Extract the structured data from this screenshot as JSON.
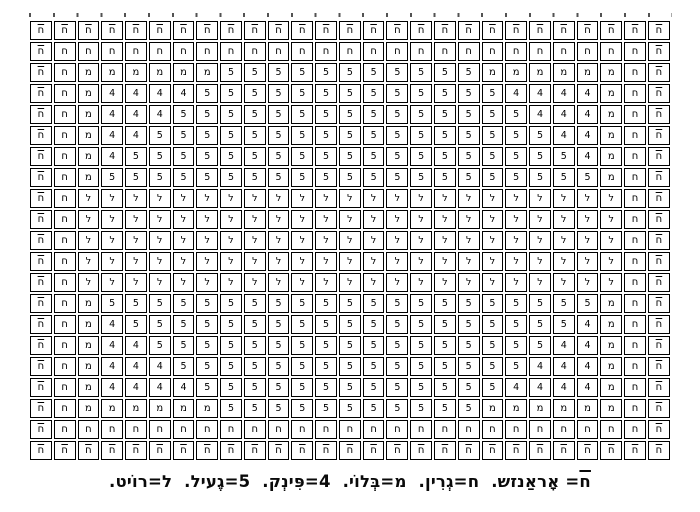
{
  "page": {
    "background_color": "#ffffff",
    "ink_color": "#000000",
    "kind": "needlework-pattern-chart-scan"
  },
  "grid": {
    "columns": 27,
    "rows_count": 21,
    "symbols": {
      "X": "het-rafe",
      "h": "het",
      "m": "mem",
      "4": "digit-4",
      "5": "digit-5",
      "L": "lamed"
    },
    "glyphs": {
      "X": "ח",
      "h": "ח",
      "m": "מ",
      "4": "4",
      "5": "5",
      "L": "ל"
    },
    "rows": [
      "XXXXXXXXXXXXXXXXXXXXXXXXXXX",
      "XhhhhhhhhhhhhhhhhhhhhhhhhhX",
      "Xhmmmmmm55555555555mmmmmmhX",
      "Xhm444455555555555554444mhX",
      "Xhm444555555555555555444mhX",
      "Xhm445555555555555555544mhX",
      "Xhm455555555555555555554mhX",
      "Xhm555555555555555555555mhX",
      "XhLLLLLLLLLLLLLLLLLLLLLLLhX",
      "XhLLLLLLLLLLLLLLLLLLLLLLLhX",
      "XhLLLLLLLLLLLLLLLLLLLLLLLhX",
      "XhLLLLLLLLLLLLLLLLLLLLLLLhX",
      "XhLLLLLLLLLLLLLLLLLLLLLLLhX",
      "Xhm555555555555555555555mhX",
      "Xhm455555555555555555554mhX",
      "Xhm445555555555555555544mhX",
      "Xhm444555555555555555444mhX",
      "Xhm444455555555555554444mhX",
      "Xhmmmmmm55555555555mmmmmmhX",
      "XhhhhhhhhhhhhhhhhhhhhhhhhhX",
      "XXXXXXXXXXXXXXXXXXXXXXXXXXX"
    ]
  },
  "legend_caption": {
    "entries": [
      {
        "symbol": "ח",
        "symbol_mark": "overline",
        "equals": "=",
        "color_word": "אָראַנזש."
      },
      {
        "symbol": "ח",
        "symbol_mark": "none",
        "equals": "=",
        "color_word": "גְרִין."
      },
      {
        "symbol": "מ",
        "symbol_mark": "none",
        "equals": "=",
        "color_word": "בְּלוֹי."
      },
      {
        "symbol": "4",
        "symbol_mark": "none",
        "equals": "=",
        "color_word": "פִּינְק."
      },
      {
        "symbol": "5",
        "symbol_mark": "none",
        "equals": "=",
        "color_word": "גֶעיל."
      },
      {
        "symbol": "ל",
        "symbol_mark": "none",
        "equals": "=",
        "color_word": "רוֹיט."
      }
    ]
  }
}
